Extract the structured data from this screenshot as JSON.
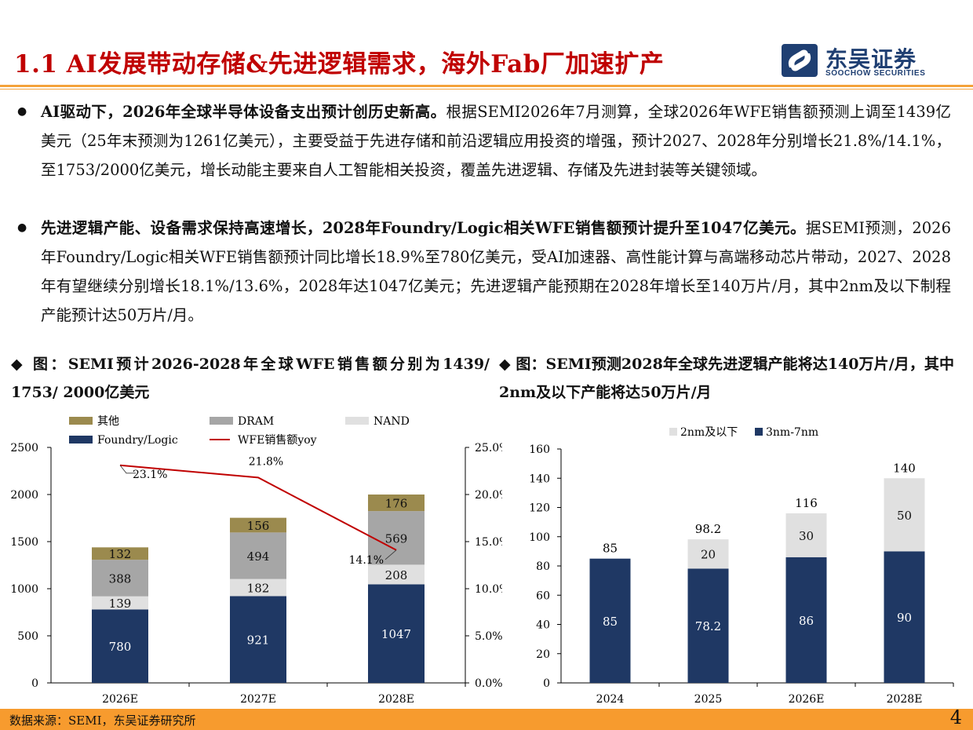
{
  "header": {
    "title": "1.1 AI发展带动存储&先进逻辑需求，海外Fab厂加速扩产",
    "logo_cn": "东吴证券",
    "logo_en": "SOOCHOW SECURITIES"
  },
  "bullets": [
    {
      "bold": "AI驱动下，2026年全球半导体设备支出预计创历史新高。",
      "text": "根据SEMI2026年7月测算，全球2026年WFE销售额预测上调至1439亿美元（25年末预测为1261亿美元），主要受益于先进存储和前沿逻辑应用投资的增强，预计2027、2028年分别增长21.8%/14.1%，至1753/2000亿美元，增长动能主要来自人工智能相关投资，覆盖先进逻辑、存储及先进封装等关键领域。"
    },
    {
      "bold": "先进逻辑产能、设备需求保持高速增长，2028年Foundry/Logic相关WFE销售额预计提升至1047亿美元。",
      "text": "据SEMI预测，2026年Foundry/Logic相关WFE销售额预计同比增长18.9%至780亿美元，受AI加速器、高性能计算与高端移动芯片带动，2027、2028年有望继续分别增长18.1%/13.6%，2028年达1047亿美元；先进逻辑产能预期在2028年增长至140万片/月，其中2nm及以下制程产能预计达50万片/月。"
    }
  ],
  "figure_titles": {
    "left": "◆ 图：SEMI预计2026-2028年全球WFE销售额分别为1439/ 1753/ 2000亿美元",
    "right": "◆ 图：SEMI预测2028年全球先进逻辑产能将达140万片/月，其中2nm及以下产能将达50万片/月"
  },
  "footer": {
    "source": "数据来源：SEMI，东吴证券研究所",
    "page": "4"
  },
  "colors": {
    "navy": "#1f3864",
    "gray": "#a6a6a6",
    "light_gray": "#e0e0e0",
    "olive": "#9b8a4e",
    "red": "#c00000",
    "title_red": "#c00000",
    "orange": "#f79b2e"
  },
  "chart_data": [
    {
      "type": "bar",
      "stacked": true,
      "categories": [
        "2026E",
        "2027E",
        "2028E"
      ],
      "series": [
        {
          "name": "Foundry/Logic",
          "values": [
            780,
            921,
            1047
          ],
          "color": "#1f3864"
        },
        {
          "name": "NAND",
          "values": [
            139,
            182,
            208
          ],
          "color": "#e0e0e0"
        },
        {
          "name": "DRAM",
          "values": [
            388,
            494,
            569
          ],
          "color": "#a6a6a6"
        },
        {
          "name": "其他",
          "values": [
            132,
            156,
            176
          ],
          "color": "#9b8a4e"
        }
      ],
      "line_series": {
        "name": "WFE销售额yoy",
        "values": [
          23.1,
          21.8,
          14.1
        ],
        "labels": [
          "23.1%",
          "21.8%",
          "14.1%"
        ],
        "color": "#c00000",
        "axis": "right"
      },
      "y_left": {
        "min": 0,
        "max": 2500,
        "ticks": [
          "0",
          "500",
          "1000",
          "1500",
          "2000",
          "2500"
        ]
      },
      "y_right": {
        "min": 0,
        "max": 25,
        "ticks": [
          "0.0%",
          "5.0%",
          "10.0%",
          "15.0%",
          "20.0%",
          "25.0%"
        ]
      },
      "legend_order": [
        "其他",
        "DRAM",
        "NAND",
        "Foundry/Logic",
        "WFE销售额yoy"
      ],
      "legend_placement": "top"
    },
    {
      "type": "bar",
      "stacked": true,
      "categories": [
        "2024",
        "2025",
        "2026E",
        "2028E"
      ],
      "series": [
        {
          "name": "3nm-7nm",
          "values": [
            85,
            78.2,
            86,
            90
          ],
          "labels": [
            "85",
            "78.2",
            "86",
            "90"
          ],
          "color": "#1f3864"
        },
        {
          "name": "2nm及以下",
          "values": [
            0,
            20,
            30,
            50
          ],
          "labels": [
            "",
            "20",
            "30",
            "50"
          ],
          "color": "#e0e0e0"
        }
      ],
      "totals": [
        "85",
        "98.2",
        "116",
        "140"
      ],
      "y": {
        "min": 0,
        "max": 160,
        "ticks": [
          "0",
          "20",
          "40",
          "60",
          "80",
          "100",
          "120",
          "140",
          "160"
        ]
      },
      "legend_order": [
        "2nm及以下",
        "3nm-7nm"
      ],
      "legend_placement": "top"
    }
  ]
}
